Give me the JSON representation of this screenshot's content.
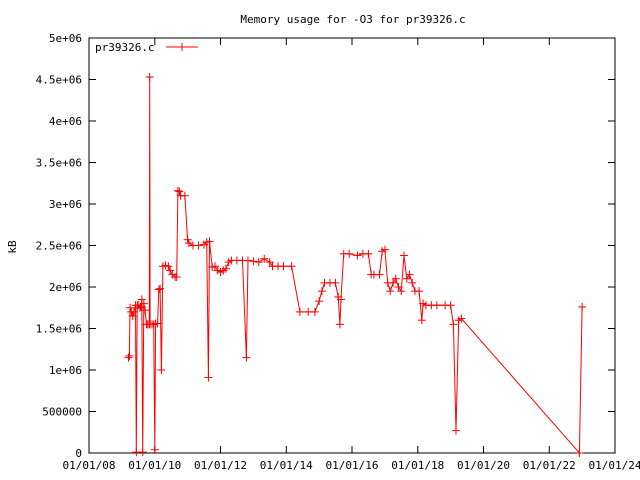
{
  "chart_data": {
    "type": "line",
    "title": "Memory usage for -O3 for pr39326.c",
    "xlabel": "",
    "ylabel": "kB",
    "xlim": [
      "2008-01-01",
      "2024-01-01"
    ],
    "ylim": [
      0,
      5000000
    ],
    "x_ticks": [
      "01/01/08",
      "01/01/10",
      "01/01/12",
      "01/01/14",
      "01/01/16",
      "01/01/18",
      "01/01/20",
      "01/01/22",
      "01/01/24"
    ],
    "y_ticks": [
      0,
      500000,
      1000000,
      1500000,
      2000000,
      2500000,
      3000000,
      3500000,
      4000000,
      4500000,
      5000000
    ],
    "y_tick_labels": [
      "0",
      "500000",
      "1e+06",
      "1.5e+06",
      "2e+06",
      "2.5e+06",
      "3e+06",
      "3.5e+06",
      "4e+06",
      "4.5e+06",
      "5e+06"
    ],
    "grid": false,
    "legend": "top-left",
    "series": [
      {
        "name": "pr39326.c",
        "color": "#ff0000",
        "marker": "plus",
        "points": [
          [
            "2009-03-15",
            1150000
          ],
          [
            "2009-03-25",
            1170000
          ],
          [
            "2009-04-01",
            1750000
          ],
          [
            "2009-04-15",
            1700000
          ],
          [
            "2009-05-01",
            1650000
          ],
          [
            "2009-05-15",
            1700000
          ],
          [
            "2009-06-01",
            1780000
          ],
          [
            "2009-06-10",
            10000
          ],
          [
            "2009-06-20",
            1780000
          ],
          [
            "2009-07-01",
            1780000
          ],
          [
            "2009-07-20",
            1750000
          ],
          [
            "2009-08-01",
            1760000
          ],
          [
            "2009-08-10",
            1850000
          ],
          [
            "2009-08-20",
            10000
          ],
          [
            "2009-09-01",
            1800000
          ],
          [
            "2009-09-15",
            1720000
          ],
          [
            "2009-10-01",
            1550000
          ],
          [
            "2009-10-15",
            1550000
          ],
          [
            "2009-11-01",
            1550000
          ],
          [
            "2009-11-05",
            4530000
          ],
          [
            "2009-11-10",
            1550000
          ],
          [
            "2009-12-01",
            1550000
          ],
          [
            "2009-12-20",
            1550000
          ],
          [
            "2010-01-01",
            40000
          ],
          [
            "2010-01-10",
            1560000
          ],
          [
            "2010-02-01",
            1560000
          ],
          [
            "2010-02-15",
            1970000
          ],
          [
            "2010-03-01",
            1980000
          ],
          [
            "2010-03-15",
            1000000
          ],
          [
            "2010-04-01",
            2250000
          ],
          [
            "2010-05-01",
            2260000
          ],
          [
            "2010-06-01",
            2250000
          ],
          [
            "2010-06-20",
            2200000
          ],
          [
            "2010-07-15",
            2150000
          ],
          [
            "2010-08-15",
            2120000
          ],
          [
            "2010-09-01",
            2120000
          ],
          [
            "2010-09-15",
            3160000
          ],
          [
            "2010-10-01",
            3150000
          ],
          [
            "2010-10-15",
            3100000
          ],
          [
            "2010-12-01",
            3100000
          ],
          [
            "2011-01-01",
            2570000
          ],
          [
            "2011-01-15",
            2530000
          ],
          [
            "2011-03-01",
            2500000
          ],
          [
            "2011-05-01",
            2500000
          ],
          [
            "2011-07-01",
            2510000
          ],
          [
            "2011-08-01",
            2540000
          ],
          [
            "2011-08-20",
            910000
          ],
          [
            "2011-09-01",
            2550000
          ],
          [
            "2011-10-01",
            2240000
          ],
          [
            "2011-11-01",
            2250000
          ],
          [
            "2011-12-01",
            2200000
          ],
          [
            "2012-01-01",
            2180000
          ],
          [
            "2012-02-01",
            2200000
          ],
          [
            "2012-03-01",
            2220000
          ],
          [
            "2012-04-01",
            2300000
          ],
          [
            "2012-05-01",
            2320000
          ],
          [
            "2012-07-01",
            2320000
          ],
          [
            "2012-09-01",
            2320000
          ],
          [
            "2012-10-15",
            1150000
          ],
          [
            "2012-11-01",
            2320000
          ],
          [
            "2013-01-01",
            2310000
          ],
          [
            "2013-03-01",
            2300000
          ],
          [
            "2013-05-01",
            2340000
          ],
          [
            "2013-07-01",
            2300000
          ],
          [
            "2013-08-01",
            2250000
          ],
          [
            "2013-10-01",
            2250000
          ],
          [
            "2013-12-01",
            2250000
          ],
          [
            "2014-03-01",
            2250000
          ],
          [
            "2014-06-01",
            1700000
          ],
          [
            "2014-09-01",
            1700000
          ],
          [
            "2014-11-15",
            1700000
          ],
          [
            "2015-01-01",
            1830000
          ],
          [
            "2015-02-01",
            1950000
          ],
          [
            "2015-03-01",
            2050000
          ],
          [
            "2015-05-01",
            2050000
          ],
          [
            "2015-07-01",
            2050000
          ],
          [
            "2015-08-01",
            1880000
          ],
          [
            "2015-08-20",
            1550000
          ],
          [
            "2015-09-01",
            1850000
          ],
          [
            "2015-10-01",
            2400000
          ],
          [
            "2015-12-01",
            2400000
          ],
          [
            "2016-03-01",
            2380000
          ],
          [
            "2016-05-01",
            2400000
          ],
          [
            "2016-07-01",
            2400000
          ],
          [
            "2016-08-01",
            2150000
          ],
          [
            "2016-09-01",
            2150000
          ],
          [
            "2016-11-01",
            2150000
          ],
          [
            "2016-12-01",
            2430000
          ],
          [
            "2017-01-01",
            2450000
          ],
          [
            "2017-02-01",
            2050000
          ],
          [
            "2017-03-01",
            1950000
          ],
          [
            "2017-04-01",
            2050000
          ],
          [
            "2017-05-01",
            2100000
          ],
          [
            "2017-06-01",
            2000000
          ],
          [
            "2017-07-01",
            1950000
          ],
          [
            "2017-08-01",
            2380000
          ],
          [
            "2017-09-01",
            2100000
          ],
          [
            "2017-10-01",
            2150000
          ],
          [
            "2017-11-01",
            2050000
          ],
          [
            "2017-12-01",
            1950000
          ],
          [
            "2018-01-15",
            1950000
          ],
          [
            "2018-02-15",
            1600000
          ],
          [
            "2018-03-01",
            1800000
          ],
          [
            "2018-04-01",
            1780000
          ],
          [
            "2018-06-01",
            1780000
          ],
          [
            "2018-08-01",
            1780000
          ],
          [
            "2018-11-01",
            1780000
          ],
          [
            "2019-01-01",
            1780000
          ],
          [
            "2019-02-01",
            1550000
          ],
          [
            "2019-03-01",
            270000
          ],
          [
            "2019-04-01",
            1600000
          ],
          [
            "2019-05-01",
            1620000
          ],
          [
            "2022-12-01",
            0
          ],
          [
            "2023-01-01",
            1760000
          ]
        ]
      }
    ]
  }
}
